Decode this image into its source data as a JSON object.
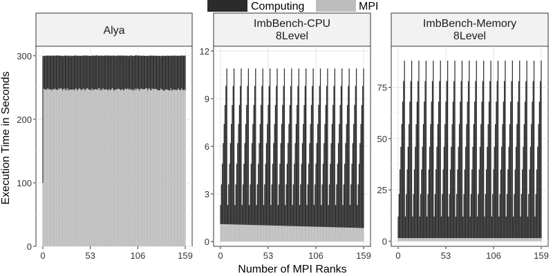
{
  "legend": {
    "placement": "top",
    "items": [
      {
        "label": "Computing",
        "color": "#2b2b2b"
      },
      {
        "label": "MPI",
        "color": "#bdbdbd"
      }
    ]
  },
  "axes": {
    "xlabel": "Number of MPI Ranks",
    "ylabel": "Execution Time in Seconds"
  },
  "chart_data": [
    {
      "type": "bar",
      "stacked": true,
      "panel_title": [
        "Alya"
      ],
      "x_range": [
        0,
        159
      ],
      "x_ticks": [
        0,
        53,
        106,
        159
      ],
      "ylim": [
        0,
        315
      ],
      "y_ticks": [
        0,
        100,
        200,
        300
      ],
      "grid": true,
      "pattern": {
        "kind": "flat",
        "mpi_first": 100,
        "mpi_level": 247,
        "total_level": 300
      },
      "series": [
        {
          "name": "Computing",
          "description": "approx. 50-55 s per rank"
        },
        {
          "name": "MPI",
          "description": "approx. 247 s per rank (rank 0 approx. 100 s)"
        }
      ]
    },
    {
      "type": "bar",
      "stacked": true,
      "panel_title": [
        "ImbBench-CPU",
        "8Level"
      ],
      "x_range": [
        0,
        159
      ],
      "x_ticks": [
        0,
        53,
        106,
        159
      ],
      "ylim": [
        -0.3,
        12.3
      ],
      "y_ticks": [
        0,
        3,
        6,
        9,
        12
      ],
      "grid": true,
      "pattern": {
        "kind": "sawtooth",
        "period": 8,
        "levels": [
          2.3,
          3.6,
          4.9,
          6.2,
          7.4,
          8.6,
          9.8,
          10.9
        ],
        "mpi_start": 1.1,
        "mpi_end": 0.85,
        "floor": 2.0
      },
      "series": [
        {
          "name": "Computing",
          "description": "8-level sawtooth up to approx. 11 s"
        },
        {
          "name": "MPI",
          "description": "approx. 1 s per rank"
        }
      ]
    },
    {
      "type": "bar",
      "stacked": true,
      "panel_title": [
        "ImbBench-Memory",
        "8Level"
      ],
      "x_range": [
        0,
        159
      ],
      "x_ticks": [
        0,
        53,
        106,
        159
      ],
      "ylim": [
        -2.5,
        95
      ],
      "y_ticks": [
        0,
        25,
        50,
        75
      ],
      "grid": true,
      "pattern": {
        "kind": "sawtooth",
        "period": 8,
        "levels": [
          12,
          23,
          35,
          46,
          57,
          68,
          78,
          88
        ],
        "mpi_start": 1.5,
        "mpi_end": 1.5,
        "floor": 10
      },
      "series": [
        {
          "name": "Computing",
          "description": "8-level sawtooth up to approx. 88 s"
        },
        {
          "name": "MPI",
          "description": "approx. 1-2 s per rank"
        }
      ]
    }
  ]
}
